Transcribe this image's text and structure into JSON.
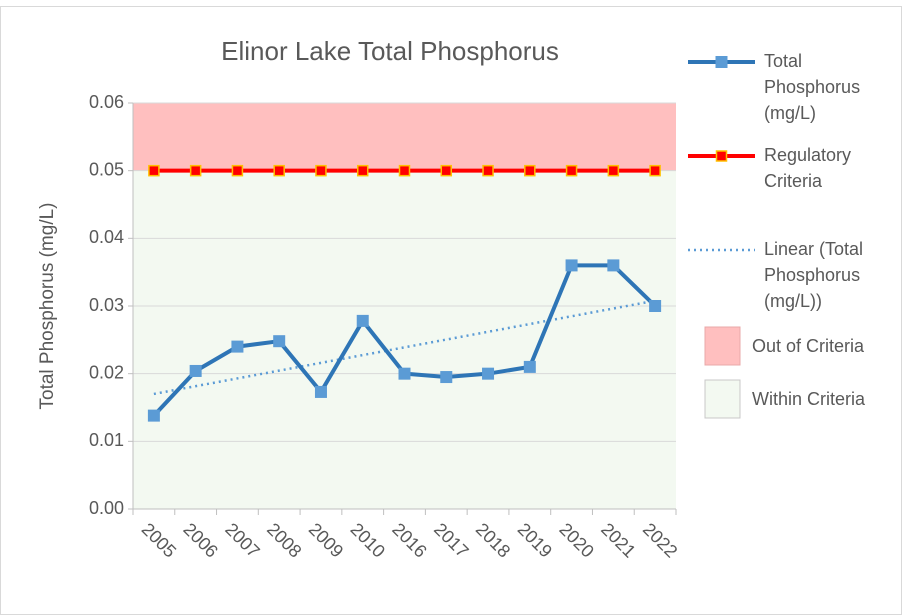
{
  "chart_data": {
    "type": "line",
    "title": "Elinor Lake Total Phosphorus",
    "y_label": "Total Phosphorus (mg/L)",
    "categories": [
      "2005",
      "2006",
      "2007",
      "2008",
      "2009",
      "2010",
      "2016",
      "2017",
      "2018",
      "2019",
      "2020",
      "2021",
      "2022"
    ],
    "series": [
      {
        "name": "Total Phosphorus (mg/L)",
        "color": "#2e75b6",
        "marker_color": "#5b9bd5",
        "values": [
          0.0138,
          0.0204,
          0.024,
          0.0248,
          0.0173,
          0.0278,
          0.02,
          0.0195,
          0.02,
          0.021,
          0.036,
          0.036,
          0.03
        ]
      },
      {
        "name": "Regulatory Criteria",
        "color": "#ff0000",
        "marker_color": "#ffc000",
        "values": [
          0.05,
          0.05,
          0.05,
          0.05,
          0.05,
          0.05,
          0.05,
          0.05,
          0.05,
          0.05,
          0.05,
          0.05,
          0.05
        ]
      }
    ],
    "trendline": {
      "name": "Linear (Total Phosphorus (mg/L))",
      "series": 0,
      "color": "#5b9bd5"
    },
    "bands": [
      {
        "name": "Out of Criteria",
        "from": 0.05,
        "to": 0.06,
        "color": "#ffbfbf",
        "border": "#e8a8a8"
      },
      {
        "name": "Within Criteria",
        "from": 0,
        "to": 0.05,
        "color": "#f3f9f1",
        "border": "#c8c8c8"
      }
    ],
    "ylim": [
      0,
      0.06
    ],
    "yticks": [
      {
        "value": 0,
        "label": "0.00"
      },
      {
        "value": 0.01,
        "label": "0.01"
      },
      {
        "value": 0.02,
        "label": "0.02"
      },
      {
        "value": 0.03,
        "label": "0.03"
      },
      {
        "value": 0.04,
        "label": "0.04"
      },
      {
        "value": 0.05,
        "label": "0.05"
      },
      {
        "value": 0.06,
        "label": "0.06"
      }
    ],
    "grid": true
  }
}
